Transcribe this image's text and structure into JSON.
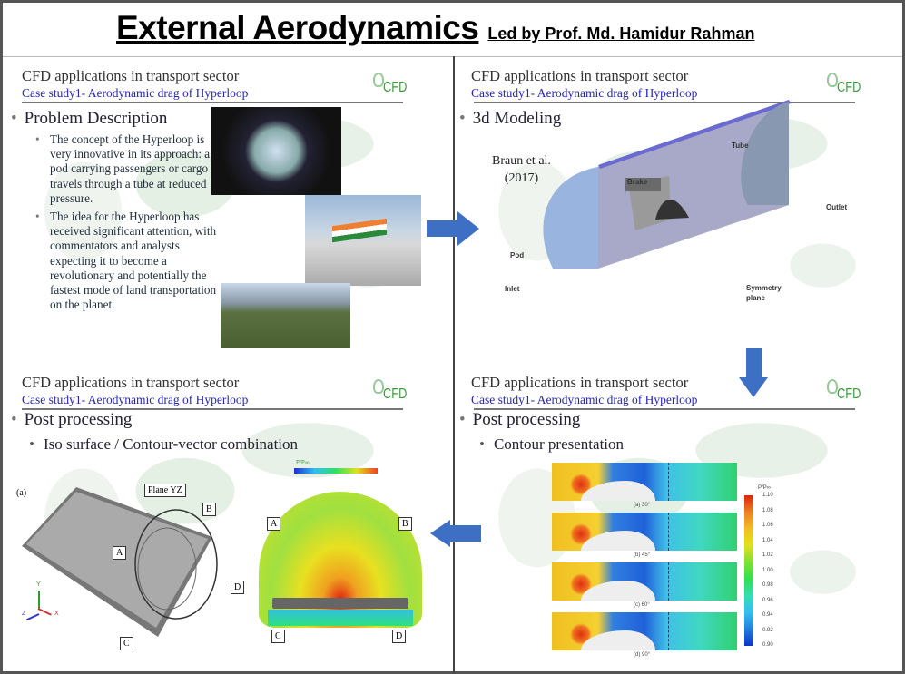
{
  "title": {
    "main": "External Aerodynamics",
    "subtitle": "Led by Prof. Md. Hamidur Rahman"
  },
  "slide_header": {
    "title": "CFD applications in transport sector",
    "subtitle": "Case study1- Aerodynamic drag of Hyperloop",
    "logo_text": "CFD"
  },
  "q1": {
    "heading": "Problem Description",
    "bullets": [
      "The concept of the Hyperloop is very innovative in its approach: a pod carrying passengers or cargo travels through a tube at reduced pressure.",
      "The idea for the Hyperloop has received significant attention, with commentators and analysts expecting it to become a revolutionary and potentially the fastest mode of land transportation on the planet."
    ]
  },
  "q2": {
    "heading": "3d Modeling",
    "citation_line1": "Braun et al.",
    "citation_line2": "(2017)",
    "labels": {
      "tube": "Tube",
      "brake": "Brake",
      "outlet": "Outlet",
      "pod": "Pod",
      "inlet": "Inlet",
      "symmetry": "Symmetry",
      "plane": "plane"
    }
  },
  "q3": {
    "heading": "Post processing",
    "subheading": "Iso surface / Contour-vector combination",
    "panel_label": "(a)",
    "plane_label": "Plane YZ",
    "legend_title": "P/P∞",
    "markers": [
      "A",
      "B",
      "C",
      "D"
    ],
    "axes": {
      "x": "X",
      "y": "Y",
      "z": "Z"
    }
  },
  "q4": {
    "heading": "Post processing",
    "subheading": "Contour presentation",
    "colorbar_title": "P/P∞",
    "colorbar_ticks": [
      "1.10",
      "1.08",
      "1.06",
      "1.04",
      "1.02",
      "1.00",
      "0.98",
      "0.96",
      "0.94",
      "0.92",
      "0.90"
    ],
    "captions": [
      "(a) 30°",
      "(b) 45°",
      "(c) 60°",
      "(d) 90°"
    ]
  },
  "colors": {
    "accent_blue": "#3d6fc4",
    "subtitle_blue": "#2626b0",
    "logo_green": "#3a9a3a"
  }
}
